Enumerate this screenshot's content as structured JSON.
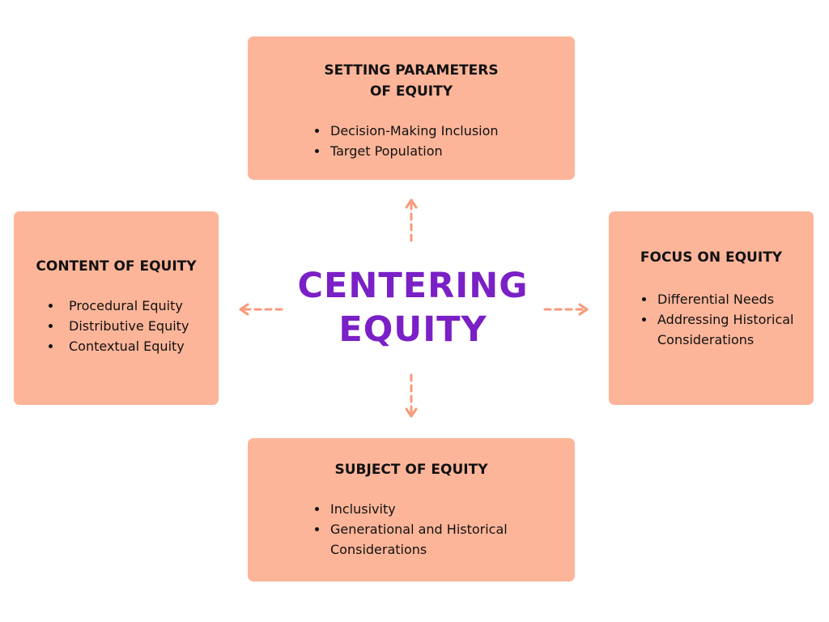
{
  "center": {
    "title": "CENTERING\nEQUITY"
  },
  "boxes": {
    "top": {
      "title": "SETTING PARAMETERS\nOF EQUITY",
      "items": [
        "Decision-Making Inclusion",
        "Target Population"
      ]
    },
    "left": {
      "title": "CONTENT OF EQUITY",
      "items": [
        "Procedural Equity",
        "Distributive Equity",
        "Contextual Equity"
      ]
    },
    "right": {
      "title": "FOCUS ON EQUITY",
      "items": [
        "Differential Needs",
        "Addressing Historical Considerations"
      ]
    },
    "bottom": {
      "title": "SUBJECT OF EQUITY",
      "items": [
        "Inclusivity",
        "Generational and Historical Considerations"
      ]
    }
  },
  "colors": {
    "box_fill": "#fdb599",
    "center_title": "#7a20c6",
    "arrow": "#f79a79",
    "text": "#111111"
  },
  "icons": {
    "arrows": [
      "arrow-up-icon",
      "arrow-left-icon",
      "arrow-right-icon",
      "arrow-down-icon"
    ]
  }
}
